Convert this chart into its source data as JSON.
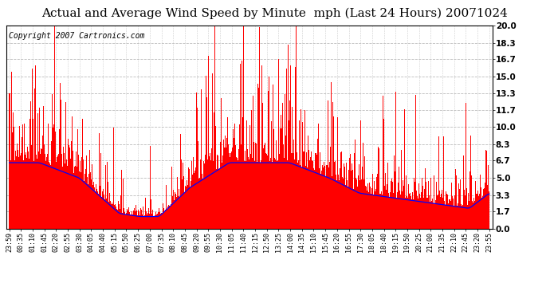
{
  "title": "Actual and Average Wind Speed by Minute  mph (Last 24 Hours) 20071024",
  "copyright_text": "Copyright 2007 Cartronics.com",
  "yticks": [
    0.0,
    1.7,
    3.3,
    5.0,
    6.7,
    8.3,
    10.0,
    11.7,
    13.3,
    15.0,
    16.7,
    18.3,
    20.0
  ],
  "ymax": 20.0,
  "ymin": 0.0,
  "bar_color": "#ff0000",
  "line_color": "#0000ff",
  "background_color": "#ffffff",
  "grid_color": "#bbbbbb",
  "title_fontsize": 11,
  "copyright_fontsize": 7,
  "tick_fontsize": 7.5,
  "x_tick_labels": [
    "23:59",
    "00:35",
    "01:10",
    "01:45",
    "02:20",
    "02:55",
    "03:30",
    "04:05",
    "04:40",
    "05:15",
    "05:50",
    "06:25",
    "07:00",
    "07:35",
    "08:10",
    "08:45",
    "09:20",
    "09:55",
    "10:30",
    "11:05",
    "11:40",
    "12:15",
    "12:50",
    "13:25",
    "14:00",
    "14:35",
    "15:10",
    "15:45",
    "16:20",
    "16:55",
    "17:30",
    "18:05",
    "18:40",
    "19:15",
    "19:50",
    "20:25",
    "21:00",
    "21:35",
    "22:10",
    "22:45",
    "23:20",
    "23:55"
  ],
  "n_points": 1440
}
